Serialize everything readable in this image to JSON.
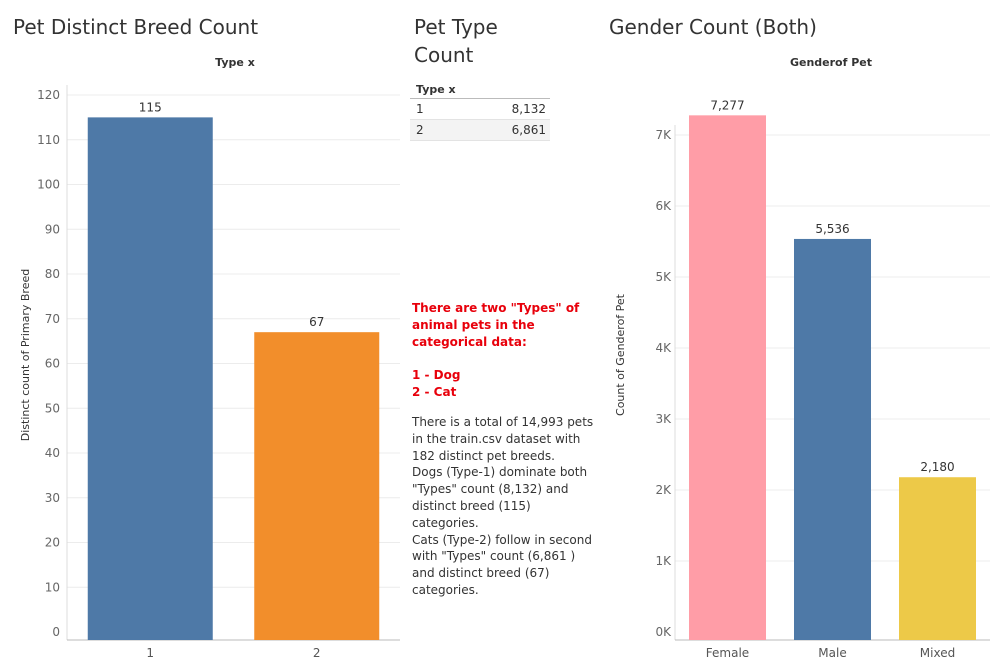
{
  "titles": {
    "left": "Pet Distinct Breed Count",
    "middle": "Pet Type Count",
    "right": "Gender Count (Both)"
  },
  "type_table": {
    "header": "Type x",
    "rows": [
      {
        "type": "1",
        "count": "8,132"
      },
      {
        "type": "2",
        "count": "6,861"
      }
    ]
  },
  "notes": {
    "red": "There are two \"Types\" of animal pets in the categorical data:\n\n1 - Dog\n2 - Cat",
    "body": "There is a total of 14,993 pets in the train.csv dataset with 182 distinct pet breeds.\nDogs (Type-1) dominate both \"Types\" count (8,132)  and distinct breed (115) categories.\nCats (Type-2) follow in second with \"Types\" count  (6,861 ) and distinct breed (67) categories."
  },
  "chart_data": [
    {
      "type": "bar",
      "header": "Type x",
      "ylabel": "Distinct count of Primary Breed",
      "categories": [
        "1",
        "2"
      ],
      "values": [
        115,
        67
      ],
      "data_labels": [
        "115",
        "67"
      ],
      "ylim": [
        0,
        120
      ],
      "yticks": [
        0,
        10,
        20,
        30,
        40,
        50,
        60,
        70,
        80,
        90,
        100,
        110,
        120
      ],
      "ytick_labels": [
        "0",
        "10",
        "20",
        "30",
        "40",
        "50",
        "60",
        "70",
        "80",
        "90",
        "100",
        "110",
        "120"
      ],
      "colors": [
        "#4e79a7",
        "#f28e2b"
      ],
      "grid": true
    },
    {
      "type": "bar",
      "header": "Genderof Pet",
      "ylabel": "Count of Genderof Pet",
      "categories": [
        "Female",
        "Male",
        "Mixed"
      ],
      "values": [
        7277,
        5536,
        2180
      ],
      "data_labels": [
        "7,277",
        "5,536",
        "2,180"
      ],
      "ylim": [
        0,
        7000
      ],
      "yticks": [
        0,
        1000,
        2000,
        3000,
        4000,
        5000,
        6000,
        7000
      ],
      "ytick_labels": [
        "0K",
        "1K",
        "2K",
        "3K",
        "4K",
        "5K",
        "6K",
        "7K"
      ],
      "colors": [
        "#ff9da7",
        "#4e79a7",
        "#edc948"
      ],
      "grid": true
    }
  ]
}
